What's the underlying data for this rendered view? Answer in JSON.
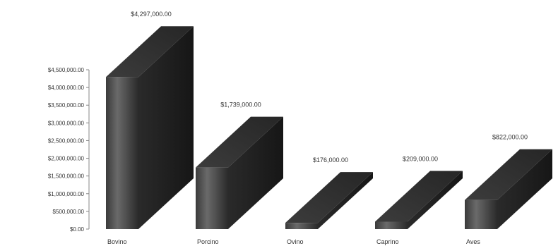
{
  "chart_data": {
    "type": "bar",
    "style": "3d",
    "categories": [
      "Bovino",
      "Porcino",
      "Ovino",
      "Caprino",
      "Aves"
    ],
    "values": [
      4297000,
      1739000,
      176000,
      209000,
      822000
    ],
    "data_labels": [
      "$4,297,000.00",
      "$1,739,000.00",
      "$176,000.00",
      "$209,000.00",
      "$822,000.00"
    ],
    "yticks": [
      {
        "value": 0,
        "label": "$0.00"
      },
      {
        "value": 500000,
        "label": "$500,000.00"
      },
      {
        "value": 1000000,
        "label": "$1,000,000.00"
      },
      {
        "value": 1500000,
        "label": "$1,500,000.00"
      },
      {
        "value": 2000000,
        "label": "$2,000,000.00"
      },
      {
        "value": 2500000,
        "label": "$2,500,000.00"
      },
      {
        "value": 3000000,
        "label": "$3,000,000.00"
      },
      {
        "value": 3500000,
        "label": "$3,500,000.00"
      },
      {
        "value": 4000000,
        "label": "$4,000,000.00"
      },
      {
        "value": 4500000,
        "label": "$4,500,000.00"
      }
    ],
    "ylim": [
      0,
      4500000
    ],
    "grid": false,
    "legend": "none",
    "colors": {
      "front": "#4a4a4a",
      "top": "#2e2e2e",
      "side": "#1f1f1f"
    }
  }
}
